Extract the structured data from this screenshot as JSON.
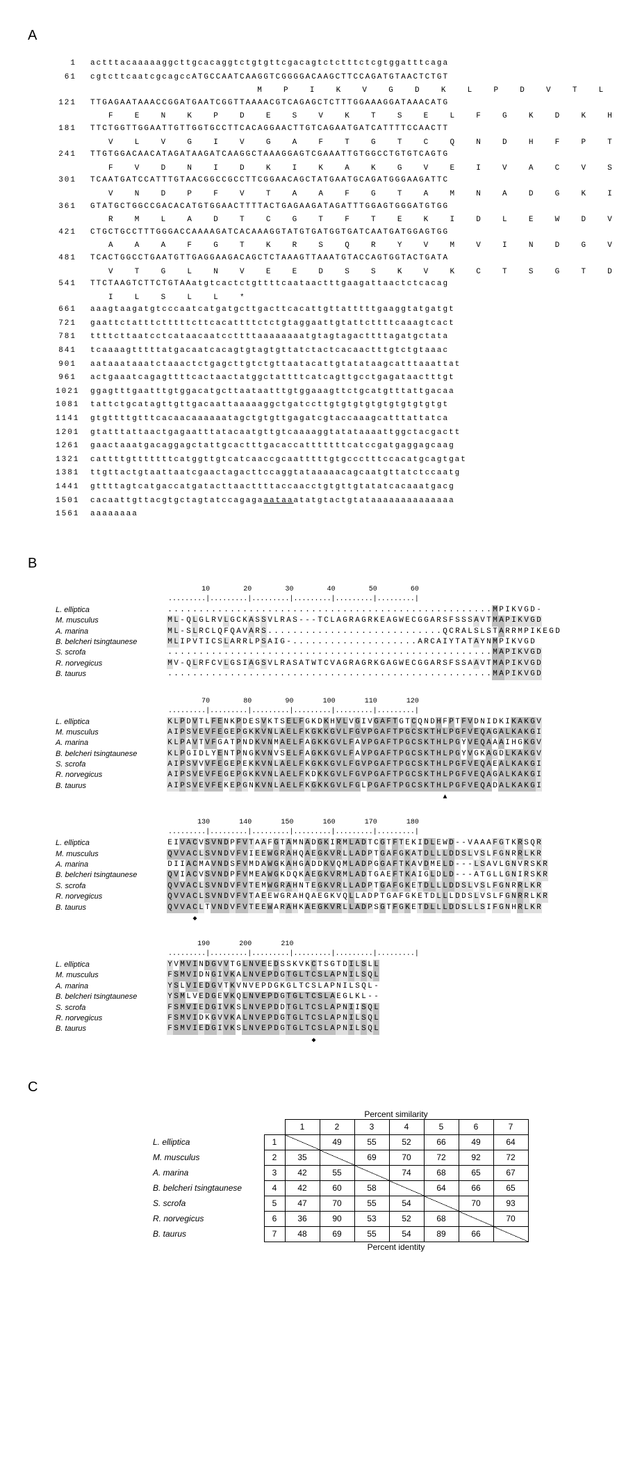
{
  "panelA": {
    "label": "A",
    "lines": [
      {
        "num": 1,
        "nt": "actttacaaaaaggcttgcacaggtctgtgttcgacagtctctttctcgtggatttcaga",
        "aa": null
      },
      {
        "num": 61,
        "nt": "cgtcttcaatcgcagccATGCCAATCAAGGTCGGGGACAAGCTTCCAGATGTAACTCTGT",
        "aa": "                 M  P  I  K  V  G  D  K  L  P  D  V  T  L  "
      },
      {
        "num": 121,
        "nt": "TTGAGAATAAACCGGATGAATCGGTTAAAACGTCAGAGCTCTTTGGAAAGGATAAACATG",
        "aa": "F  E  N  K  P  D  E  S  V  K  T  S  E  L  F  G  K  D  K  H  "
      },
      {
        "num": 181,
        "nt": "TTCTGGTTGGAATTGTTGGTGCCTTCACAGGAACTTGTCAGAATGATCATTTTCCAACTT",
        "aa": "V  L  V  G  I  V  G  A  F  T  G  T  C  Q  N  D  H  F  P  T  "
      },
      {
        "num": 241,
        "nt": "TTGTGGACAACATAGATAAGATCAAGGCTAAAGGAGTCGAAATTGTGGCCTGTGTCAGTG",
        "aa": "F  V  D  N  I  D  K  I  K  A  K  G  V  E  I  V  A  C  V  S  "
      },
      {
        "num": 301,
        "nt": "TCAATGATCCATTTGTAACGGCCGCCTTCGGAACAGCTATGAATGCAGATGGGAAGATTC",
        "aa": "V  N  D  P  F  V  T  A  A  F  G  T  A  M  N  A  D  G  K  I  "
      },
      {
        "num": 361,
        "nt": "GTATGCTGGCCGACACATGTGGAACTTTTACTGAGAAGATAGATTTGGAGTGGGATGTGG",
        "aa": "R  M  L  A  D  T  C  G  T  F  T  E  K  I  D  L  E  W  D  V  "
      },
      {
        "num": 421,
        "nt": "CTGCTGCCTTTGGGACCAAAAGATCACAAAGGTATGTGATGGTGATCAATGATGGAGTGG",
        "aa": "A  A  A  F  G  T  K  R  S  Q  R  Y  V  M  V  I  N  D  G  V  "
      },
      {
        "num": 481,
        "nt": "TCACTGGCCTGAATGTTGAGGAAGACAGCTCTAAAGTTAAATGTACCAGTGGTACTGATA",
        "aa": "V  T  G  L  N  V  E  E  D  S  S  K  V  K  C  T  S  G  T  D  "
      },
      {
        "num": 541,
        "nt": "TTCTAAGTCTTCTGTAAatgtcactctgttttcaataactttgaagattaactctcacag",
        "aa": "I  L  S  L  L  *"
      },
      {
        "num": 661,
        "nt": "aaagtaagatgtcccaatcatgatgcttgacttcacattgttatttttgaaggtatgatgt",
        "aa": null
      },
      {
        "num": 721,
        "nt": "gaattctatttctttttcttcacattttctctgtaggaattgtattcttttcaaagtcact",
        "aa": null
      },
      {
        "num": 781,
        "nt": "ttttcttaatcctcataacaatccttttaaaaaaaatgtagtagacttttagatgctata",
        "aa": null
      },
      {
        "num": 841,
        "nt": "tcaaaagtttttatgacaatcacagtgtagtgttatctactcacaactttgtctgtaaac",
        "aa": null
      },
      {
        "num": 901,
        "nt": "aataaataaatctaaactctgagcttgtctgttaatacattgtatataagcatttaaattat",
        "aa": null
      },
      {
        "num": 961,
        "nt": "actgaaatcagagttttcactaactatggctattttcatcagttgcctgagataactttgt",
        "aa": null
      },
      {
        "num": 1021,
        "nt": "ggagtttgaatttgtggacatgcttaataatttgtggaaagttctgcatgtttattgacaa",
        "aa": null
      },
      {
        "num": 1081,
        "nt": "tattctgcatagttgttgacaattaaaaaggctgatccttgtgtgtgtgtgtgtgtgtgt",
        "aa": null
      },
      {
        "num": 1141,
        "nt": "gtgttttgtttcacaacaaaaaatagctgtgttgagatcgtaccaaagcatttattatca",
        "aa": null
      },
      {
        "num": 1201,
        "nt": "gtatttattaactgagaatttatacaatgttgtcaaaaggtatataaaattggctacgactt",
        "aa": null
      },
      {
        "num": 1261,
        "nt": "gaactaaatgacaggagctattgcactttgacaccatttttttcatccgatgaggagcaag",
        "aa": null
      },
      {
        "num": 1321,
        "nt": "cattttgtttttttcatggttgtcatcaaccgcaatttttgtgccctttccacatgcagtgat",
        "aa": null
      },
      {
        "num": 1381,
        "nt": "ttgttactgtaattaatcgaactagacttccaggtataaaaacagcaatgttatctccaatg",
        "aa": null
      },
      {
        "num": 1441,
        "nt": "gttttagtcatgaccatgatacttaacttttaccaacctgtgttgtatatcacaaatgacg",
        "aa": null
      },
      {
        "num": 1501,
        "nt": "cacaattgttacgtgctagtatccagaga",
        "aa": null,
        "poly": "aataa",
        "tail": "atatgtactgtataaaaaaaaaaaaaa"
      },
      {
        "num": 1561,
        "nt": "aaaaaaaa",
        "aa": null
      }
    ]
  },
  "panelB": {
    "label": "B",
    "species": [
      "L. elliptica",
      "M. musculus",
      "A. marina",
      "B. belcheri tsingtaunese",
      "S. scrofa",
      "R. norvegicus",
      "B. taurus"
    ],
    "rulers": [
      "         10        20        30        40        50        60",
      "         70        80        90       100       110       120",
      "        130       140       150       160       170       180",
      "        190       200       210"
    ],
    "blocks": [
      [
        "....................................................MPIKVGD-",
        "ML-QLGLRVLGCKASSVLRAS---TCLAGRAGRKEAGWECGGARSFSSSAVTMAPIKVGD",
        "ML-SLRCLQFQAVARS............................QCRALSLSTARRMPIKEGD",
        "MLIPVTICSLARRLPSAIG-....................ARCAIYTATAYNMPIKVGD",
        "....................................................MAPIKVGD",
        "MV-QLRFCVLGSIAGSVLRASATWTCVAGRAGRKGAGWECGGARSFSSAAVTMAPIKVGD",
        "....................................................MAPIKVGD"
      ],
      [
        "KLPDVTLFENKPDESVKTSELFGKDKHVLVGIVGAFTGTCQNDHFPTFVDNIDKIKAKGV",
        "AIPSVEVFEGEPGKKVNLAELFKGKKGVLFGVPGAFTPGCSKTHLPGFVEQAGALKAKGI",
        "KLPAVTVFGATPNDKVNMAELFAGKKGVLFAVPGAFTPGCSKTHLPGYVEQAAAIHGKGV",
        "KLPGIDLYENTPNGKVNVSELFAGKKGVLFAVPGAFTPGCSKTHLPGYVGKAGDLKAKGV",
        "AIPSVVVFEGEPEKKVNLAELFKGKKGVLFGVPGAFTPGCSKTHLPGFVEQAEALKAKGI",
        "AIPSVEVFEGEPGKKVNLAELFKDKKGVLFGVPGAFTPGCSKTHLPGFVEQAGALKAKGI",
        "AIPSVEVFEKEPGNKVNLAELFKGKKGVLFGLPGAFTPGCSKTHLPGFVEQADALKAKGI"
      ],
      [
        "EIVACVSVNDPFVTAAFGTAMNADGKIRMLADTCGTFTEKIDLEWD--VAAAFGTKRSQR",
        "QVVACLSVNDVFVIEEWGRAHQAEGKVRLLADPTGAFGKATDLLLDDSLVSLFGNRRLKR",
        "DIIACMAVNDSFVMDAWGKAHGADDKVQMLADPGGAFTKAVDMELD---LSAVLGNVRSKR",
        "QVIACVSVNDPFVMEAWGKDQKAEGKVRMLADTGAEFTKAIGLDLD---ATGLLGNIRSKR",
        "QVVACLSVNDVFVTEMWGRAHNTEGKVRLLADPTGAFGKETDLLLDDSLVSLFGNRRLKR",
        "QVVACLSVNDVFVTAEEWGRAHQAEGKVQLLADPTGAFGKETDLLLDDSLVSLFGNRRLKR",
        "QVVACLTVNDVFVTEEWARAHKAEGKVRLLADPSGTFGKETDLLLDDSLLSIFGNHRLKR"
      ],
      [
        "YVMVINDGVVTGLNVEEDSSKVKCTSGTDILSLL",
        "FSMVIDNGIVKALNVEPDGTGLTCSLAPNILSQL",
        "YSLVIEDGVTKVNVEPDGKGLTCSLAPNILSQL-",
        "YSMLVEDGEVKQLNVEPDGTGLTCSLAEGLKL--",
        "FSMVIEDGIVKSLNVEPDDTGLTCSLAPNIISQL",
        "FSMVIDKGVVKALNVEPDGTGLTCSLAPNILSQL",
        "FSMVIEDGIVKSLNVEPDGTGLTCSLAPNILSQL"
      ]
    ],
    "markers": [
      {
        "block": 1,
        "pos": 44,
        "symbol": "▲"
      },
      {
        "block": 2,
        "pos": 4,
        "symbol": "◆"
      },
      {
        "block": 3,
        "pos": 23,
        "symbol": "◆"
      }
    ]
  },
  "panelC": {
    "label": "C",
    "top_label": "Percent similarity",
    "bot_label": "Percent identity",
    "species": [
      "L. elliptica",
      "M. musculus",
      "A. marina",
      "B. belcheri tsingtaunese",
      "S. scrofa",
      "R. norvegicus",
      "B. taurus"
    ],
    "headers": [
      "1",
      "2",
      "3",
      "4",
      "5",
      "6",
      "7"
    ],
    "matrix": [
      [
        "",
        "49",
        "55",
        "52",
        "66",
        "49",
        "64"
      ],
      [
        "35",
        "",
        "69",
        "70",
        "72",
        "92",
        "72"
      ],
      [
        "42",
        "55",
        "",
        "74",
        "68",
        "65",
        "67"
      ],
      [
        "42",
        "60",
        "58",
        "",
        "64",
        "66",
        "65"
      ],
      [
        "47",
        "70",
        "55",
        "54",
        "",
        "70",
        "93"
      ],
      [
        "36",
        "90",
        "53",
        "52",
        "68",
        "",
        "70"
      ],
      [
        "48",
        "69",
        "55",
        "54",
        "89",
        "66",
        ""
      ]
    ]
  }
}
